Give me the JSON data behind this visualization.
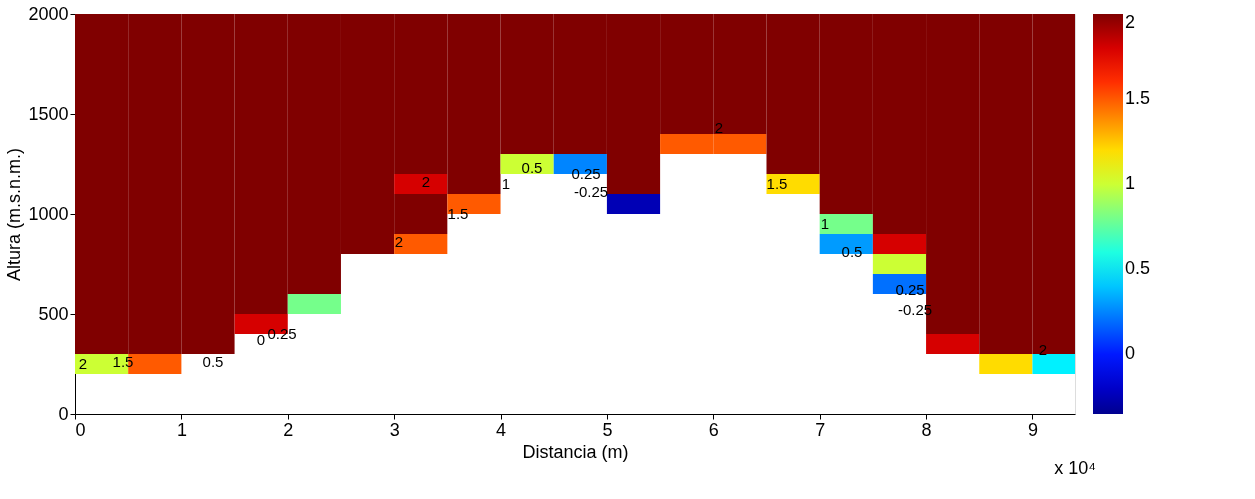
{
  "chart_data": {
    "type": "heatmap",
    "xlabel": "Distancia (m)",
    "ylabel": "Altura (m.s.n.m.)",
    "x": [
      0.25,
      0.75,
      1.25,
      1.75,
      2.25,
      2.75,
      3.25,
      3.75,
      4.25,
      4.75,
      5.25,
      5.75,
      6.25,
      6.75,
      7.25,
      7.75,
      8.25,
      8.75,
      9.25
    ],
    "y": [
      1950,
      1850,
      1750,
      1650,
      1550,
      1450,
      1350,
      1250,
      1150,
      1050,
      950,
      850,
      750,
      650,
      550,
      450,
      350,
      250
    ],
    "cells": [
      [
        2,
        2,
        2,
        2,
        2,
        2,
        2,
        2,
        2,
        2,
        2,
        2,
        2,
        2,
        2,
        2,
        2,
        2,
        2
      ],
      [
        2,
        2,
        2,
        2,
        2,
        2,
        2,
        2,
        2,
        2,
        2,
        2,
        2,
        2,
        2,
        2,
        2,
        2,
        2
      ],
      [
        2,
        2,
        2,
        2,
        2,
        2,
        2,
        2,
        2,
        2,
        2,
        2,
        2,
        2,
        2,
        2,
        2,
        2,
        2
      ],
      [
        2,
        2,
        2,
        2,
        2,
        2,
        2,
        2,
        2,
        2,
        2,
        2,
        2,
        2,
        2,
        2,
        2,
        2,
        2
      ],
      [
        2,
        2,
        2,
        2,
        2,
        2,
        2,
        2,
        2,
        2,
        2,
        2,
        2,
        2,
        2,
        2,
        2,
        2,
        2
      ],
      [
        2,
        2,
        2,
        2,
        2,
        2,
        2,
        2,
        2,
        2,
        2,
        2,
        2,
        2,
        2,
        2,
        2,
        2,
        2
      ],
      [
        2,
        2,
        2,
        2,
        2,
        2,
        2,
        2,
        2,
        2,
        2,
        1.5,
        1.5,
        2,
        2,
        2,
        2,
        2,
        2
      ],
      [
        2,
        2,
        2,
        2,
        2,
        2,
        2,
        2,
        1.0,
        0.25,
        2,
        null,
        null,
        2,
        2,
        2,
        2,
        2,
        2
      ],
      [
        2,
        2,
        2,
        2,
        2,
        2,
        1.8,
        2,
        null,
        null,
        2,
        null,
        null,
        1.2,
        2,
        2,
        2,
        2,
        2
      ],
      [
        2,
        2,
        2,
        2,
        2,
        2,
        2,
        1.5,
        null,
        null,
        -0.25,
        null,
        null,
        null,
        2,
        2,
        2,
        2,
        2
      ],
      [
        2,
        2,
        2,
        2,
        2,
        2,
        2,
        null,
        null,
        null,
        null,
        null,
        null,
        null,
        0.8,
        2,
        2,
        2,
        2
      ],
      [
        2,
        2,
        2,
        2,
        2,
        2,
        1.5,
        null,
        null,
        null,
        null,
        null,
        null,
        null,
        0.3,
        1.8,
        2,
        2,
        2
      ],
      [
        2,
        2,
        2,
        2,
        2,
        null,
        null,
        null,
        null,
        null,
        null,
        null,
        null,
        null,
        null,
        1.0,
        2,
        2,
        2
      ],
      [
        2,
        2,
        2,
        2,
        2,
        null,
        null,
        null,
        null,
        null,
        null,
        null,
        null,
        null,
        null,
        0.2,
        2,
        2,
        2
      ],
      [
        2,
        2,
        2,
        2,
        0.8,
        null,
        null,
        null,
        null,
        null,
        null,
        null,
        null,
        null,
        null,
        null,
        2,
        2,
        2
      ],
      [
        2,
        2,
        2,
        1.8,
        null,
        null,
        null,
        null,
        null,
        null,
        null,
        null,
        null,
        null,
        null,
        null,
        2,
        2,
        2
      ],
      [
        2,
        2,
        2,
        null,
        null,
        null,
        null,
        null,
        null,
        null,
        null,
        null,
        null,
        null,
        null,
        null,
        1.8,
        2,
        2
      ],
      [
        1.0,
        1.5,
        null,
        null,
        null,
        null,
        null,
        null,
        null,
        null,
        null,
        null,
        null,
        null,
        null,
        null,
        null,
        1.2,
        0.5
      ]
    ],
    "xlim": [
      0,
      9.4
    ],
    "xticks": [
      0,
      1,
      2,
      3,
      4,
      5,
      6,
      7,
      8,
      9
    ],
    "ylim": [
      0,
      2000
    ],
    "yticks": [
      0,
      500,
      1000,
      1500,
      2000
    ],
    "clim": [
      -0.35,
      2
    ],
    "cticks": [
      0,
      0.5,
      1,
      1.5,
      2
    ],
    "grid": false,
    "annotations": [
      "2",
      "2",
      "1.5",
      "0.5",
      "0",
      "0.25",
      "2",
      "1.5",
      "1",
      "0.5",
      "0.25",
      "-0.25",
      "2",
      "1.5",
      "1",
      "0.5",
      "0.25",
      "-0.25",
      "2",
      "x 10⁴"
    ]
  }
}
